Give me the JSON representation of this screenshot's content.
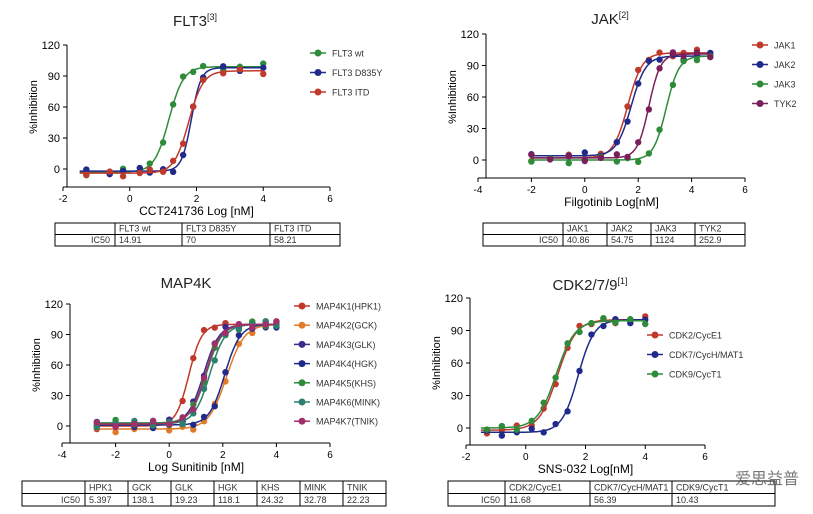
{
  "chart_data": [
    {
      "type": "line",
      "title": "FLT3",
      "title_sup": "[3]",
      "xlabel": "CCT241736 Log [nM]",
      "ylabel": "%Inhibition",
      "xlim": [
        -2,
        6
      ],
      "ylim": [
        0,
        120
      ],
      "xticks": [
        -2,
        0,
        2,
        4,
        6
      ],
      "yticks": [
        0,
        30,
        60,
        90,
        120
      ],
      "curve_range": [
        -1.5,
        4
      ],
      "points_x": [
        -1.3,
        -0.6,
        -0.2,
        0.3,
        0.6,
        1.0,
        1.3,
        1.6,
        1.9,
        2.2,
        2.8,
        3.3,
        4.0
      ],
      "series": [
        {
          "name": "FLT3 wt",
          "color": "#2e8b3a",
          "ic50": 14.91,
          "hill": 2.0,
          "bottom": -3,
          "top": 99
        },
        {
          "name": "FLT3 D835Y",
          "color": "#1f2a8a",
          "ic50": 70,
          "hill": 3.0,
          "bottom": -2,
          "top": 98
        },
        {
          "name": "FLT3 ITD",
          "color": "#c0392b",
          "ic50": 58.21,
          "hill": 2.0,
          "bottom": -4,
          "top": 95
        }
      ],
      "table": {
        "headers": [
          "FLT3 wt",
          "FLT3 D835Y",
          "FLT3 ITD"
        ],
        "row_label": "IC50",
        "values": [
          "14.91",
          "70",
          "58.21"
        ]
      }
    },
    {
      "type": "line",
      "title": "JAK",
      "title_sup": "[2]",
      "xlabel": "Filgotinib Log[nM]",
      "ylabel": "%Inhibition",
      "xlim": [
        -4,
        6
      ],
      "ylim": [
        0,
        120
      ],
      "xticks": [
        -4,
        -2,
        0,
        2,
        4,
        6
      ],
      "yticks": [
        0,
        30,
        60,
        90,
        120
      ],
      "curve_range": [
        -2,
        4.7
      ],
      "points_x": [
        -2,
        -1.3,
        -0.6,
        0,
        0.6,
        1.2,
        1.6,
        2.0,
        2.4,
        2.8,
        3.3,
        3.7,
        4.2,
        4.7
      ],
      "series": [
        {
          "name": "JAK1",
          "color": "#c0392b",
          "ic50": 40.86,
          "hill": 1.6,
          "bottom": 2,
          "top": 102
        },
        {
          "name": "JAK2",
          "color": "#1f2a8a",
          "ic50": 54.75,
          "hill": 1.6,
          "bottom": 4,
          "top": 99
        },
        {
          "name": "JAK3",
          "color": "#2e8b3a",
          "ic50": 1124,
          "hill": 1.8,
          "bottom": 0,
          "top": 99
        },
        {
          "name": "TYK2",
          "color": "#7b1f5a",
          "ic50": 252.9,
          "hill": 2.0,
          "bottom": 2,
          "top": 101
        }
      ],
      "table": {
        "headers": [
          "JAK1",
          "JAK2",
          "JAK3",
          "TYK2"
        ],
        "row_label": "IC50",
        "values": [
          "40.86",
          "54.75",
          "1124",
          "252.9"
        ]
      }
    },
    {
      "type": "line",
      "title": "MAP4K",
      "title_sup": "",
      "xlabel": "Log Sunitinib [nM]",
      "ylabel": "%Inhibition",
      "xlim": [
        -4,
        6
      ],
      "ylim": [
        0,
        120
      ],
      "xticks": [
        -4,
        -2,
        0,
        2,
        4,
        6
      ],
      "yticks": [
        0,
        30,
        60,
        90,
        120
      ],
      "curve_range": [
        -2.7,
        4
      ],
      "points_x": [
        -2.7,
        -2,
        -1.3,
        -0.6,
        0,
        0.5,
        0.9,
        1.3,
        1.7,
        2.1,
        2.6,
        3.1,
        3.6,
        4.0
      ],
      "series": [
        {
          "name": "MAP4K1(HPK1)",
          "color": "#c0392b",
          "ic50": 5.397,
          "hill": 1.8,
          "bottom": 0,
          "top": 100
        },
        {
          "name": "MAP4K2(GCK)",
          "color": "#e07b2a",
          "ic50": 138.1,
          "hill": 1.3,
          "bottom": -3,
          "top": 100
        },
        {
          "name": "MAP4K3(GLK)",
          "color": "#3a2a8a",
          "ic50": 19.23,
          "hill": 1.5,
          "bottom": 2,
          "top": 100
        },
        {
          "name": "MAP4K4(HGK)",
          "color": "#1f2a8a",
          "ic50": 118.1,
          "hill": 1.5,
          "bottom": 1,
          "top": 100
        },
        {
          "name": "MAP4K5(KHS)",
          "color": "#2e8b3a",
          "ic50": 24.32,
          "hill": 1.5,
          "bottom": 3,
          "top": 100
        },
        {
          "name": "MAP4K6(MINK)",
          "color": "#2a7f6f",
          "ic50": 32.78,
          "hill": 1.5,
          "bottom": 2,
          "top": 100
        },
        {
          "name": "MAP4K7(TNIK)",
          "color": "#a0306a",
          "ic50": 22.23,
          "hill": 1.5,
          "bottom": 2,
          "top": 100
        }
      ],
      "table": {
        "headers": [
          "HPK1",
          "GCK",
          "GLK",
          "HGK",
          "KHS",
          "MINK",
          "TNIK"
        ],
        "row_label": "IC50",
        "values": [
          "5.397",
          "138.1",
          "19.23",
          "118.1",
          "24.32",
          "32.78",
          "22.23"
        ]
      }
    },
    {
      "type": "line",
      "title": "CDK2/7/9",
      "title_sup": "[1]",
      "xlabel": "SNS-032 Log[nM]",
      "ylabel": "%Inhibition",
      "xlim": [
        -2,
        6
      ],
      "ylim": [
        0,
        120
      ],
      "xticks": [
        -2,
        0,
        2,
        4,
        6
      ],
      "yticks": [
        0,
        30,
        60,
        90,
        120
      ],
      "curve_range": [
        -1.5,
        4
      ],
      "points_x": [
        -1.3,
        -0.8,
        -0.3,
        0.2,
        0.6,
        1.0,
        1.4,
        1.8,
        2.2,
        2.6,
        3.0,
        3.5,
        4.0
      ],
      "series": [
        {
          "name": "CDK2/CycE1",
          "color": "#c0392b",
          "ic50": 11.68,
          "hill": 1.4,
          "bottom": -2,
          "top": 100
        },
        {
          "name": "CDK7/CycH/MAT1",
          "color": "#1f2a8a",
          "ic50": 56.39,
          "hill": 1.6,
          "bottom": -4,
          "top": 100
        },
        {
          "name": "CDK9/CycT1",
          "color": "#2e8b3a",
          "ic50": 10.43,
          "hill": 1.4,
          "bottom": 0,
          "top": 99
        }
      ],
      "table": {
        "headers": [
          "CDK2/CycE1",
          "CDK7/CycH/MAT1",
          "CDK9/CycT1"
        ],
        "row_label": "IC50",
        "values": [
          "11.68",
          "56.39",
          "10.43"
        ]
      }
    }
  ],
  "watermark": "爱思益普"
}
